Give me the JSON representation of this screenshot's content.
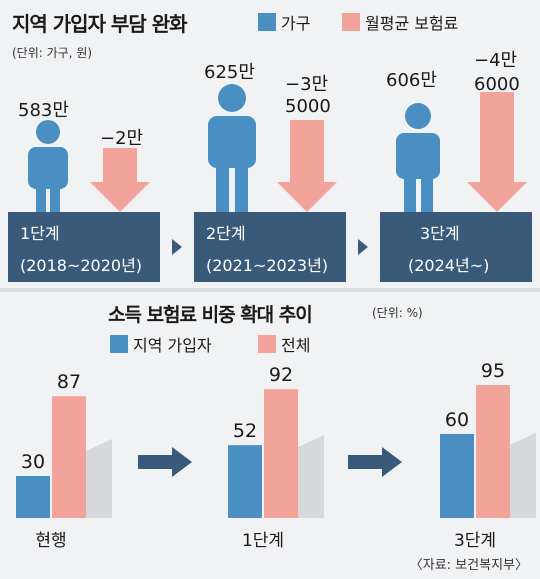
{
  "top_chart": {
    "title": "지역 가입자 부담 완화",
    "unit": "(단위: 가구, 원)",
    "legend": [
      {
        "label": "가구",
        "color": "#4a8fc2"
      },
      {
        "label": "월평균 보험료",
        "color": "#f2a49a"
      }
    ],
    "stages": [
      {
        "name": "1단계",
        "years": "(2018~2020년)",
        "households": "583만",
        "change_line1": "−2만",
        "change_line2": ""
      },
      {
        "name": "2단계",
        "years": "(2021~2023년)",
        "households": "625만",
        "change_line1": "−3만",
        "change_line2": "5000"
      },
      {
        "name": "3단계",
        "years": "(2024년~)",
        "households": "606만",
        "change_line1": "−4만",
        "change_line2": "6000"
      }
    ]
  },
  "chart_data": {
    "type": "bar",
    "title": "소득 보험료 비중 확대 추이",
    "unit": "(단위: %)",
    "categories": [
      "현행",
      "1단계",
      "3단계"
    ],
    "series": [
      {
        "name": "지역 가입자",
        "color": "#4a8fc2",
        "values": [
          30,
          52,
          60
        ]
      },
      {
        "name": "전체",
        "color": "#f2a49a",
        "values": [
          87,
          92,
          95
        ]
      }
    ],
    "ylim": [
      0,
      100
    ]
  },
  "source_note": "〈자료: 보건복지부〉"
}
